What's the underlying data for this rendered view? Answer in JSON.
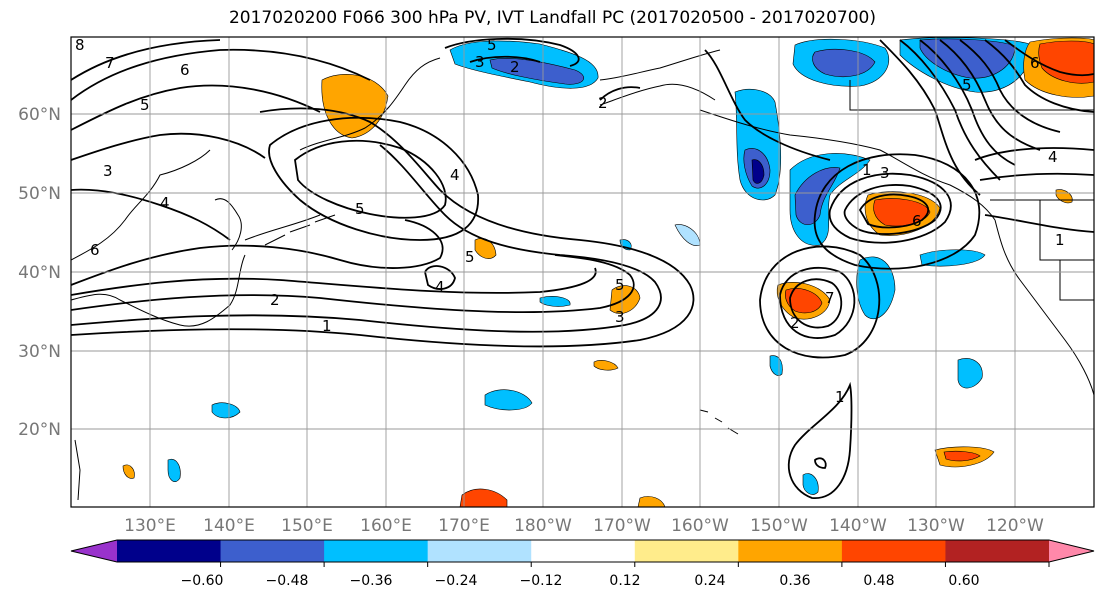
{
  "title": "2017020200 F066 300 hPa PV, IVT Landfall PC (2017020500 - 2017020700)",
  "map": {
    "lat_labels": [
      "60°N",
      "50°N",
      "40°N",
      "30°N",
      "20°N"
    ],
    "lon_labels": [
      "130°E",
      "140°E",
      "150°E",
      "160°E",
      "170°E",
      "180°W",
      "170°W",
      "160°W",
      "150°W",
      "140°W",
      "130°W",
      "120°W"
    ],
    "gridlines": true,
    "contour_labels": [
      "8",
      "7",
      "6",
      "5",
      "3",
      "4",
      "5",
      "6",
      "5",
      "4",
      "2",
      "1",
      "5",
      "3",
      "2",
      "5",
      "4",
      "3",
      "2",
      "1",
      "2",
      "3",
      "6",
      "7",
      "5",
      "6",
      "4",
      "1",
      "1"
    ]
  },
  "colorbar": {
    "tick_labels": [
      "−0.60",
      "−0.48",
      "−0.36",
      "−0.24",
      "−0.12",
      "0.12",
      "0.24",
      "0.36",
      "0.48",
      "0.60"
    ],
    "colors": [
      "#9932cc",
      "#00008b",
      "#3d5fcd",
      "#00bfff",
      "#b0e2ff",
      "#ffffff",
      "#ffec8b",
      "#ffa500",
      "#ff4500",
      "#b22222",
      "#ff88aa"
    ]
  },
  "palette": {
    "dkred": "#b22222",
    "red": "#ff4500",
    "orange": "#ffa500",
    "yellow": "#ffec8b",
    "ltblue": "#b0e2ff",
    "cyan": "#00bfff",
    "blue": "#3d5fcd",
    "navy": "#00008b"
  }
}
